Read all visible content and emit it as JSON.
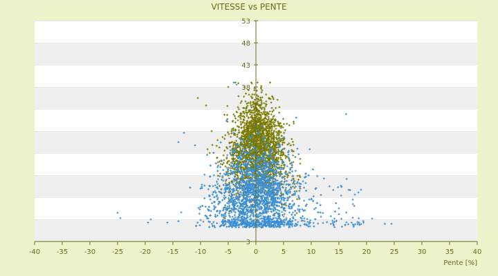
{
  "chart_data": {
    "type": "scatter",
    "title": "VITESSE vs PENTE",
    "xlabel": "Pente [%]",
    "ylabel": "",
    "xlim": [
      -40,
      40
    ],
    "ylim": [
      3,
      53
    ],
    "x_ticks": [
      -40,
      -35,
      -30,
      -25,
      -20,
      -15,
      -10,
      -5,
      0,
      5,
      10,
      15,
      20,
      25,
      30,
      35,
      40
    ],
    "y_ticks": [
      3,
      8,
      13,
      18,
      23,
      28,
      33,
      38,
      43,
      48,
      53
    ],
    "y_tick_labels_shown": [
      "3",
      "38",
      "43",
      "48",
      "53"
    ],
    "grid": true,
    "band_colors": [
      "#ffffff",
      "#efefef"
    ],
    "axis_color": "#6b6b1a",
    "series": [
      {
        "color": "#7a7a00",
        "approx_points": 2200,
        "description_values": {
          "x_range": [
            -11,
            8
          ],
          "y_range": [
            6,
            39
          ],
          "center": [
            0,
            26
          ]
        }
      },
      {
        "color": "#3a8ed6",
        "approx_points": 2600,
        "description_values": {
          "x_range": [
            -25,
            24.5
          ],
          "y_range": [
            6,
            39
          ],
          "center": [
            0,
            13
          ]
        }
      }
    ],
    "sample_points": {
      "blue": [
        [
          -25,
          9.5
        ],
        [
          -24.5,
          8.3
        ],
        [
          -19.5,
          7.3
        ],
        [
          -19,
          8
        ],
        [
          -16,
          7.3
        ],
        [
          -14,
          7.6
        ],
        [
          -13.5,
          9.6
        ],
        [
          -14,
          25.5
        ],
        [
          -13,
          27.6
        ],
        [
          -11,
          24.8
        ],
        [
          -10,
          15
        ],
        [
          -9.5,
          7.5
        ],
        [
          21,
          8.2
        ],
        [
          23.3,
          7
        ],
        [
          24.5,
          7
        ],
        [
          17.5,
          8.4
        ],
        [
          15,
          10.5
        ],
        [
          15,
          9.2
        ],
        [
          -4,
          39
        ],
        [
          -3.5,
          38.5
        ]
      ],
      "olive": [
        [
          -10.5,
          35.5
        ],
        [
          -9,
          33.8
        ],
        [
          -5,
          38
        ],
        [
          0.3,
          39
        ],
        [
          -8,
          28
        ],
        [
          -7,
          22
        ],
        [
          5,
          23
        ],
        [
          7,
          16
        ],
        [
          8,
          15
        ],
        [
          2,
          30
        ]
      ]
    }
  }
}
